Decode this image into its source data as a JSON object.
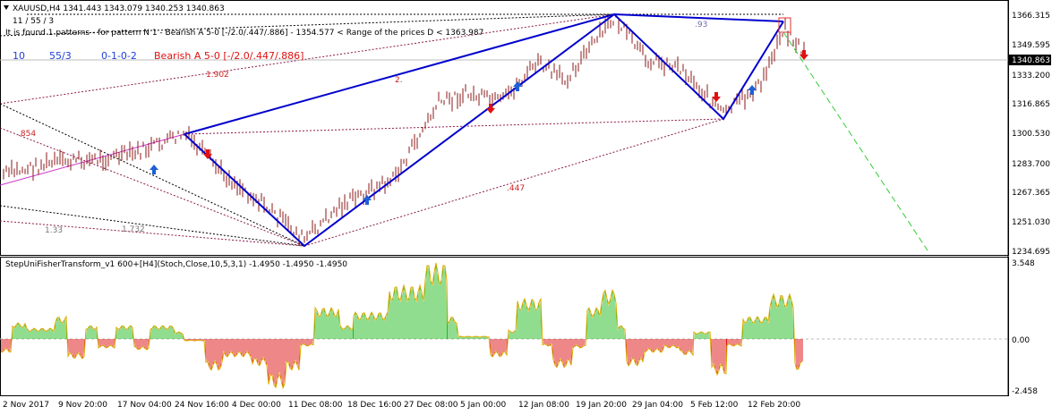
{
  "main": {
    "symbol_line": "XAUUSD,H4  1341.443 1343.079 1340.253 1340.863",
    "sub_label": "11 / 55 / 3",
    "pattern_info": "It is found 1 patterns  -  for pattern N 1 - Bearish A 5-0 [-/2.0/.447/.886] - 1354.577 < Range of the prices D < 1363.987",
    "info_vals": [
      "10",
      "55/3",
      "0-1-0-2"
    ],
    "pattern_name": "Bearish A 5-0 [-/2.0/.447/.886]",
    "current_price": "1340.863",
    "price_axis": [
      "1366.315",
      "1349.595",
      "1333.200",
      "1316.865",
      "1300.530",
      "1283.700",
      "1267.365",
      "1251.030",
      "1234.695"
    ],
    "ratio_labels": [
      ".854",
      "1.902",
      "2.",
      ".93",
      ".447",
      "1.33",
      "1.732"
    ]
  },
  "indicator": {
    "title": "StepUniFisherTransform_v1 600+[H4](Stoch,Close,10,5,3,1) -1.4950 -1.4950 -1.4950",
    "axis": [
      "3.548",
      "0.00",
      "-2.458"
    ]
  },
  "time_axis": [
    "2 Nov 2017",
    "9 Nov 20:00",
    "17 Nov 04:00",
    "24 Nov 16:00",
    "4 Dec 00:00",
    "11 Dec 08:00",
    "18 Dec 16:00",
    "27 Dec 08:00",
    "5 Jan 00:00",
    "12 Jan 08:00",
    "19 Jan 20:00",
    "29 Jan 04:00",
    "5 Feb 12:00",
    "12 Feb 20:00"
  ],
  "colors": {
    "candle": "#8b1a1a",
    "pattern": "#0000cd",
    "projection": "#33cc33",
    "hist_up": "#22bb22",
    "hist_down": "#dd1111",
    "arrow_up": "#1e5fd8",
    "arrow_down": "#e01010",
    "ratio": "#cc2222"
  }
}
